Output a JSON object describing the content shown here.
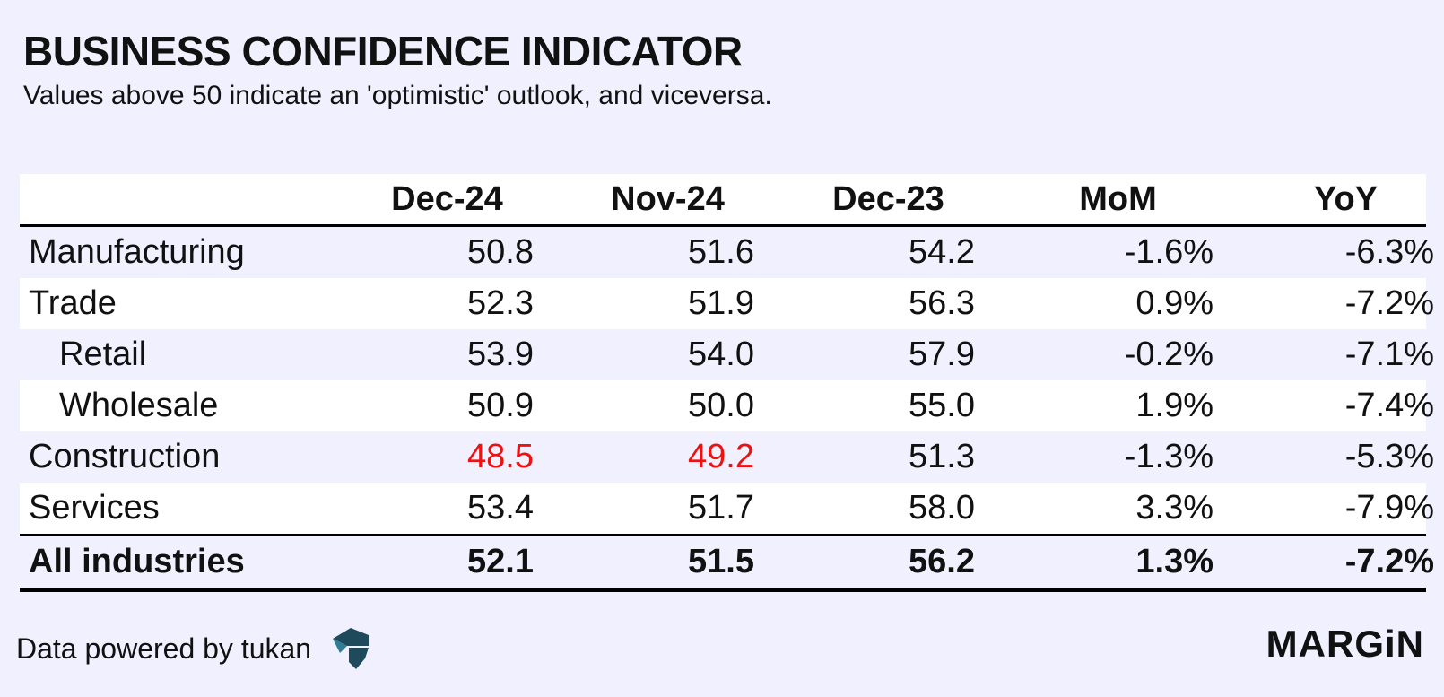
{
  "title": "BUSINESS CONFIDENCE INDICATOR",
  "subtitle": "Values above 50 indicate an 'optimistic' outlook, and viceversa.",
  "chart_data": {
    "type": "table",
    "columns": [
      "",
      "Dec-24",
      "Nov-24",
      "Dec-23",
      "MoM",
      "YoY"
    ],
    "rows": [
      {
        "label": "Manufacturing",
        "indent": false,
        "values": [
          "50.8",
          "51.6",
          "54.2",
          "-1.6%",
          "-6.3%"
        ],
        "highlight": [
          false,
          false,
          false,
          false,
          false
        ]
      },
      {
        "label": "Trade",
        "indent": false,
        "values": [
          "52.3",
          "51.9",
          "56.3",
          "0.9%",
          "-7.2%"
        ],
        "highlight": [
          false,
          false,
          false,
          false,
          false
        ]
      },
      {
        "label": "Retail",
        "indent": true,
        "values": [
          "53.9",
          "54.0",
          "57.9",
          "-0.2%",
          "-7.1%"
        ],
        "highlight": [
          false,
          false,
          false,
          false,
          false
        ]
      },
      {
        "label": "Wholesale",
        "indent": true,
        "values": [
          "50.9",
          "50.0",
          "55.0",
          "1.9%",
          "-7.4%"
        ],
        "highlight": [
          false,
          false,
          false,
          false,
          false
        ]
      },
      {
        "label": "Construction",
        "indent": false,
        "values": [
          "48.5",
          "49.2",
          "51.3",
          "-1.3%",
          "-5.3%"
        ],
        "highlight": [
          true,
          true,
          false,
          false,
          false
        ]
      },
      {
        "label": "Services",
        "indent": false,
        "values": [
          "53.4",
          "51.7",
          "58.0",
          "3.3%",
          "-7.9%"
        ],
        "highlight": [
          false,
          false,
          false,
          false,
          false
        ]
      }
    ],
    "total": {
      "label": "All industries",
      "values": [
        "52.1",
        "51.5",
        "56.2",
        "1.3%",
        "-7.2%"
      ]
    },
    "highlight_color": "#ee1111"
  },
  "footer": {
    "source": "Data powered by tukan",
    "logo_icon": "tukan-logo-icon",
    "brand": "MARGiN"
  },
  "colors": {
    "background": "#f0f0ff",
    "alt_row": "#ffffff",
    "text": "#111111"
  }
}
